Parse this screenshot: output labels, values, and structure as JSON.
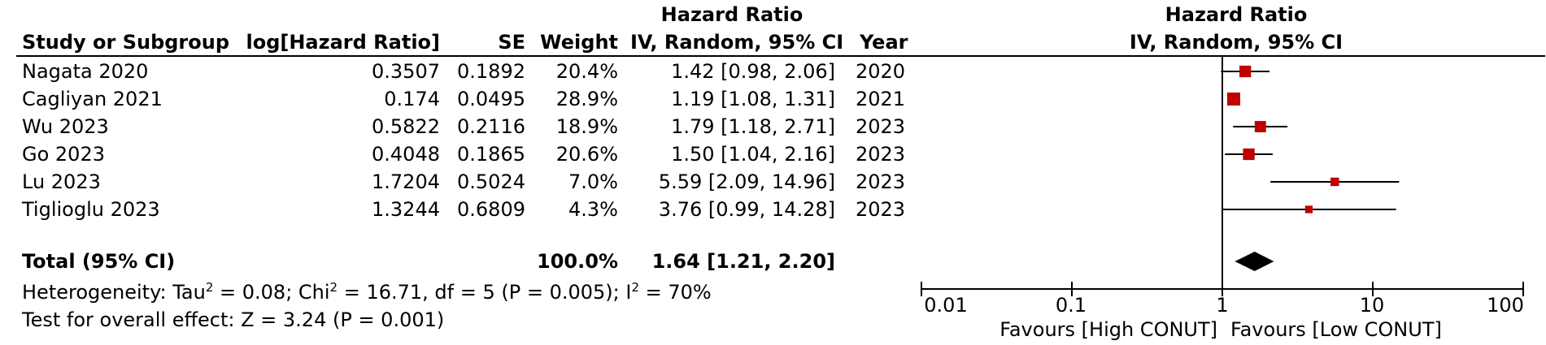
{
  "table": {
    "header_group_hr": "Hazard Ratio",
    "columns": {
      "study": "Study or Subgroup",
      "loghr": "log[Hazard Ratio]",
      "se": "SE",
      "weight": "Weight",
      "ci": "IV, Random, 95% CI",
      "year": "Year"
    },
    "rows": [
      {
        "study": "Nagata 2020",
        "loghr": "0.3507",
        "se": "0.1892",
        "weight": "20.4%",
        "ci": "1.42 [0.98, 2.06]",
        "year": "2020"
      },
      {
        "study": "Cagliyan 2021",
        "loghr": "0.174",
        "se": "0.0495",
        "weight": "28.9%",
        "ci": "1.19 [1.08, 1.31]",
        "year": "2021"
      },
      {
        "study": "Wu 2023",
        "loghr": "0.5822",
        "se": "0.2116",
        "weight": "18.9%",
        "ci": "1.79 [1.18, 2.71]",
        "year": "2023"
      },
      {
        "study": "Go 2023",
        "loghr": "0.4048",
        "se": "0.1865",
        "weight": "20.6%",
        "ci": "1.50 [1.04, 2.16]",
        "year": "2023"
      },
      {
        "study": "Lu 2023",
        "loghr": "1.7204",
        "se": "0.5024",
        "weight": "7.0%",
        "ci": "5.59 [2.09, 14.96]",
        "year": "2023"
      },
      {
        "study": "Tiglioglu 2023",
        "loghr": "1.3244",
        "se": "0.6809",
        "weight": "4.3%",
        "ci": "3.76 [0.99, 14.28]",
        "year": "2023"
      }
    ],
    "total": {
      "label": "Total (95% CI)",
      "weight": "100.0%",
      "ci": "1.64 [1.21, 2.20]"
    },
    "heterogeneity": {
      "prefix": "Heterogeneity: Tau",
      "tau_sup": "2",
      "tau_val": " = 0.08; Chi",
      "chi_sup": "2",
      "chi_val": " = 16.71, df = 5 (P = 0.005); I",
      "i_sup": "2",
      "i_val": " = 70%"
    },
    "overall_effect": "Test for overall effect: Z = 3.24 (P = 0.001)"
  },
  "chart_data": {
    "type": "forest",
    "title": "Hazard Ratio",
    "subtitle": "IV, Random, 95% CI",
    "x_scale": "log",
    "xlim": [
      0.01,
      100
    ],
    "ticks": [
      0.01,
      0.1,
      1,
      10,
      100
    ],
    "tick_labels": [
      "0.01",
      "0.1",
      "1",
      "10",
      "100"
    ],
    "reference_line": 1,
    "favours_left": "Favours [High CONUT]",
    "favours_right": "Favours [Low CONUT]",
    "studies": [
      {
        "name": "Nagata 2020",
        "hr": 1.42,
        "lower": 0.98,
        "upper": 2.06,
        "weight": 20.4
      },
      {
        "name": "Cagliyan 2021",
        "hr": 1.19,
        "lower": 1.08,
        "upper": 1.31,
        "weight": 28.9
      },
      {
        "name": "Wu 2023",
        "hr": 1.79,
        "lower": 1.18,
        "upper": 2.71,
        "weight": 18.9
      },
      {
        "name": "Go 2023",
        "hr": 1.5,
        "lower": 1.04,
        "upper": 2.16,
        "weight": 20.6
      },
      {
        "name": "Lu 2023",
        "hr": 5.59,
        "lower": 2.09,
        "upper": 14.96,
        "weight": 7.0
      },
      {
        "name": "Tiglioglu 2023",
        "hr": 3.76,
        "lower": 0.99,
        "upper": 14.28,
        "weight": 4.3
      }
    ],
    "pooled": {
      "hr": 1.64,
      "lower": 1.21,
      "upper": 2.2
    },
    "colors": {
      "marker": "#c00000",
      "line": "#000000"
    }
  }
}
